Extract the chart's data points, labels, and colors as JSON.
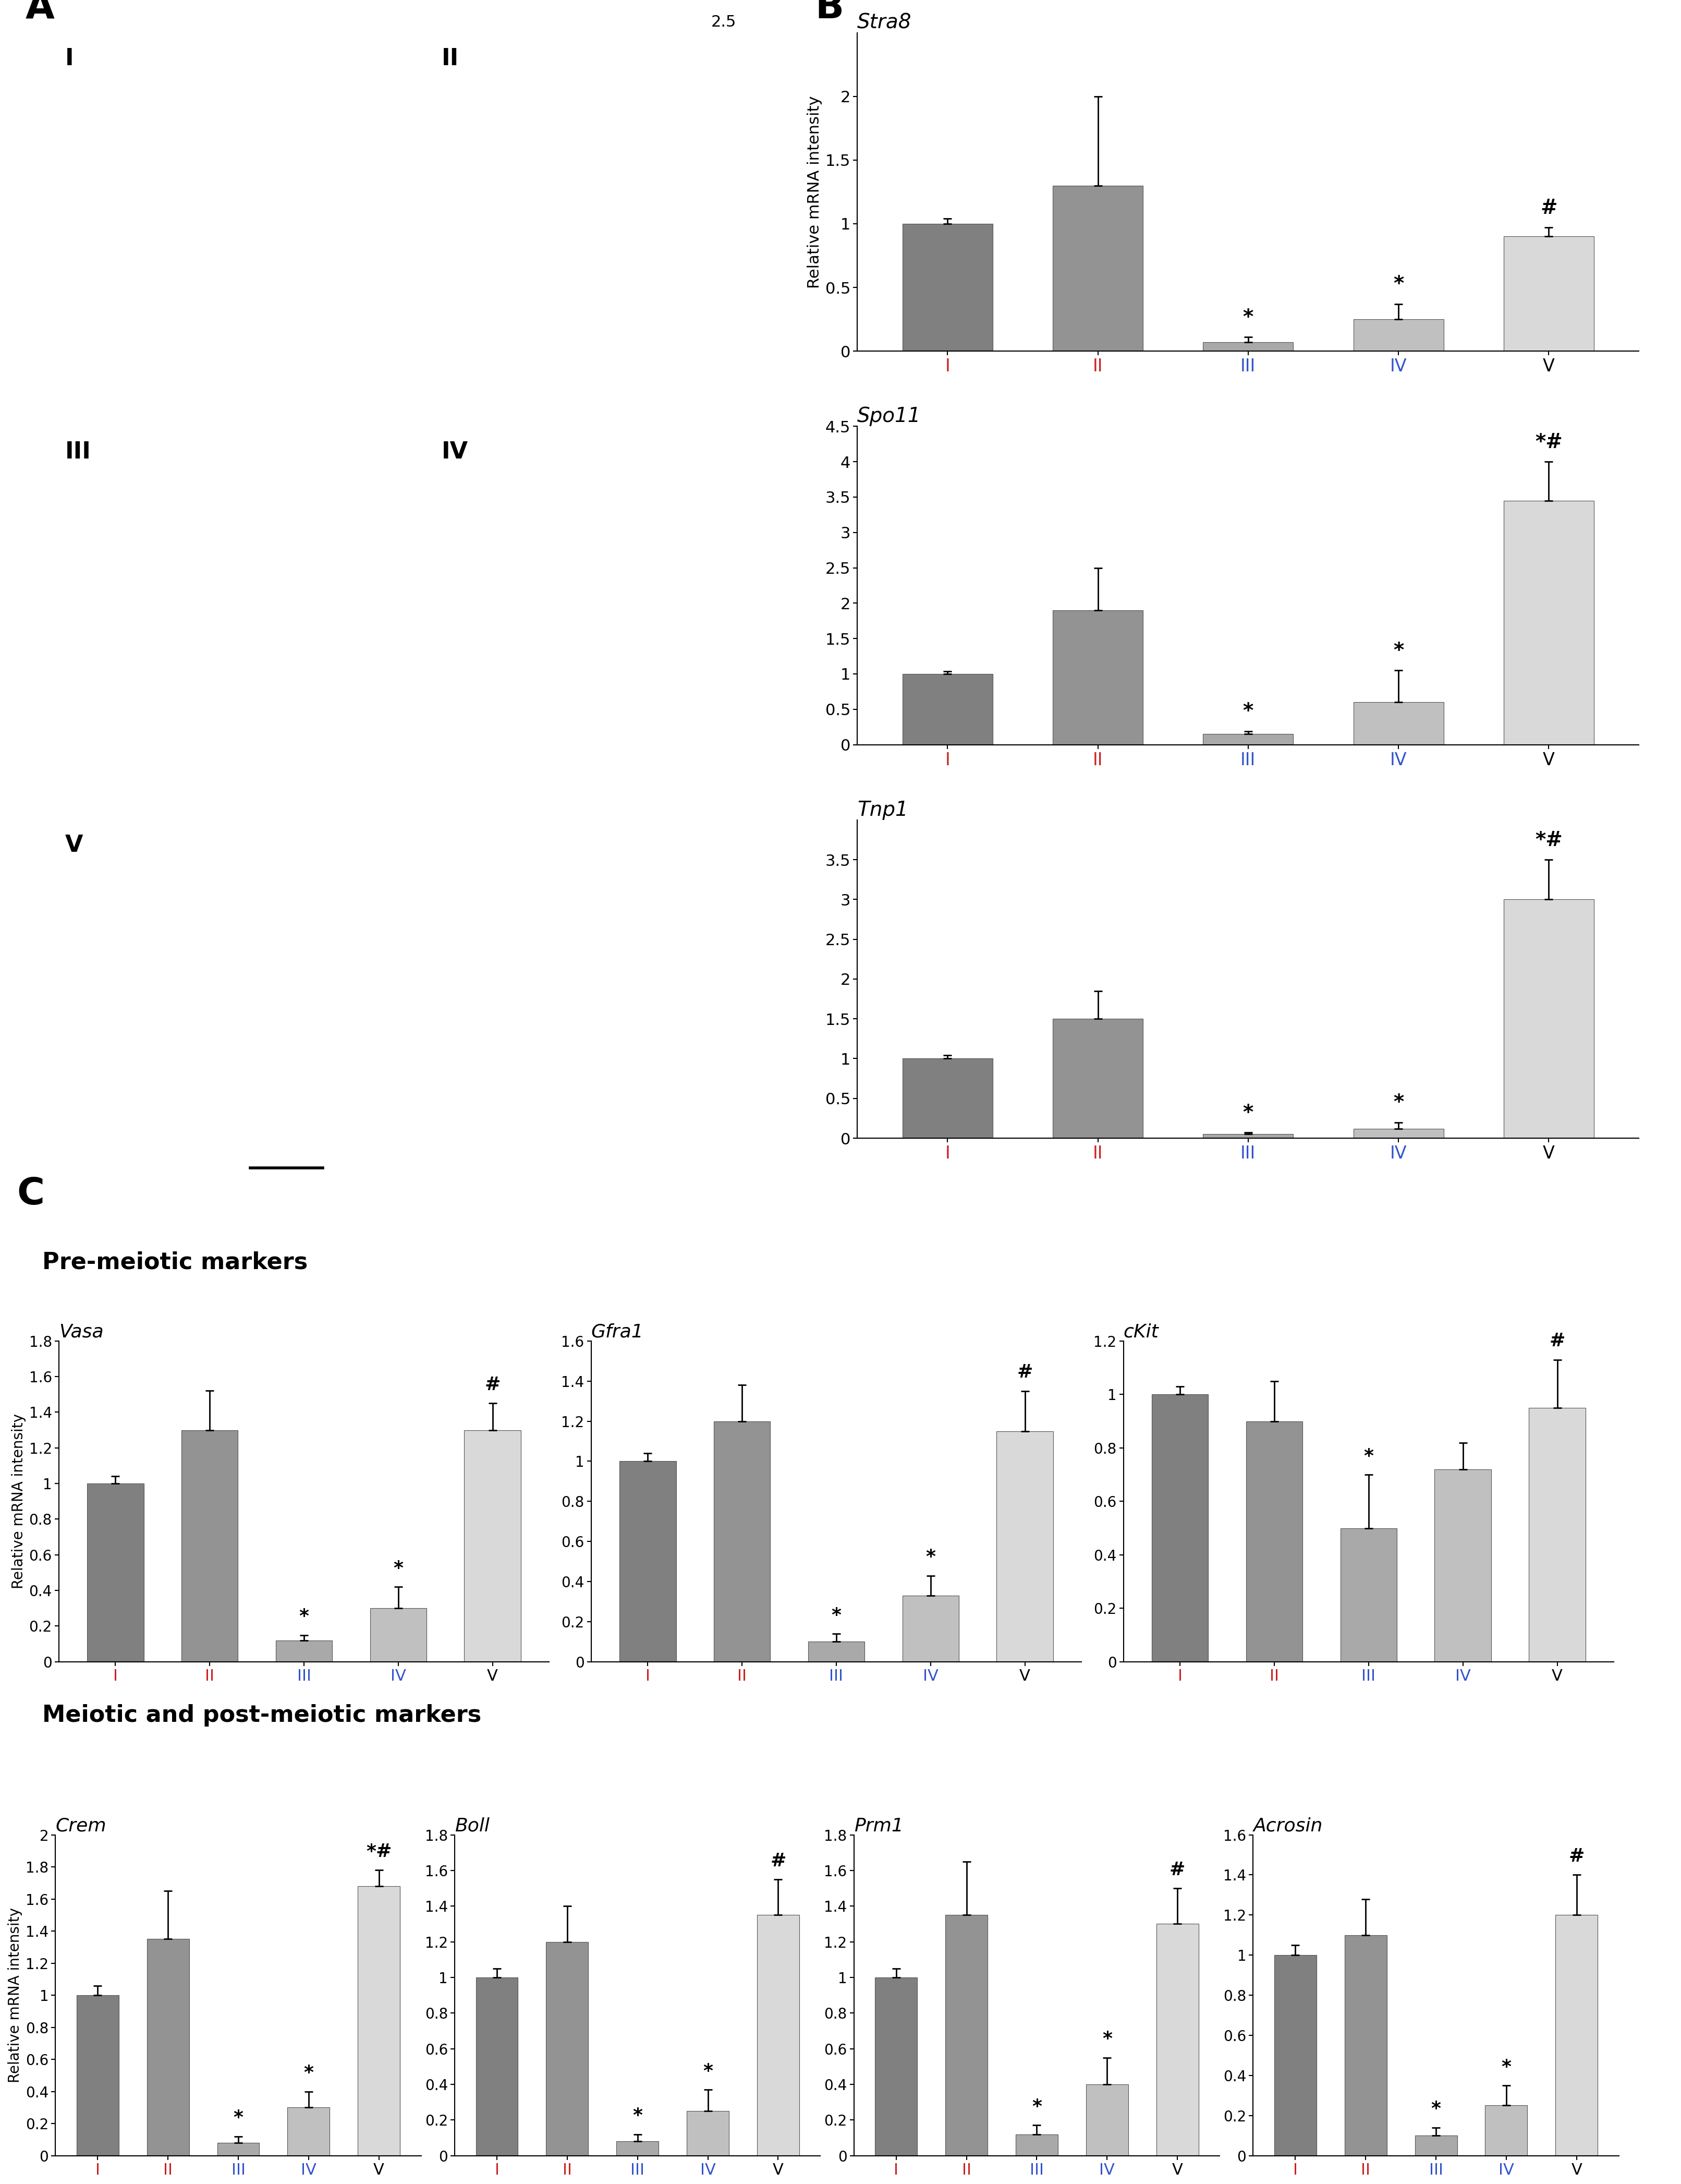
{
  "panel_B": {
    "Stra8": {
      "values": [
        1.0,
        1.3,
        0.07,
        0.25,
        0.9
      ],
      "errors": [
        0.04,
        0.7,
        0.04,
        0.12,
        0.07
      ],
      "ylim": [
        0,
        2.5
      ],
      "yticks": [
        0,
        0.5,
        1.0,
        1.5,
        2.0
      ],
      "ytick_labels": [
        "0",
        "0.5",
        "1",
        "1.5",
        "2"
      ],
      "annotations": {
        "3": "*",
        "4": "*",
        "5": "#"
      }
    },
    "Spo11": {
      "values": [
        1.0,
        1.9,
        0.15,
        0.6,
        3.45
      ],
      "errors": [
        0.04,
        0.6,
        0.04,
        0.45,
        0.55
      ],
      "ylim": [
        0,
        4.5
      ],
      "yticks": [
        0,
        0.5,
        1.0,
        1.5,
        2.0,
        2.5,
        3.0,
        3.5,
        4.0,
        4.5
      ],
      "ytick_labels": [
        "0",
        "0.5",
        "1",
        "1.5",
        "2",
        "2.5",
        "3",
        "3.5",
        "4",
        "4.5"
      ],
      "annotations": {
        "3": "*",
        "4": "*",
        "5": "*#"
      }
    },
    "Tnp1": {
      "values": [
        1.0,
        1.5,
        0.05,
        0.12,
        3.0
      ],
      "errors": [
        0.04,
        0.35,
        0.02,
        0.08,
        0.5
      ],
      "ylim": [
        0,
        4.0
      ],
      "yticks": [
        0,
        0.5,
        1.0,
        1.5,
        2.0,
        2.5,
        3.0,
        3.5
      ],
      "ytick_labels": [
        "0",
        "0.5",
        "1",
        "1.5",
        "2",
        "2.5",
        "3",
        "3.5"
      ],
      "annotations": {
        "3": "*",
        "4": "*",
        "5": "*#"
      }
    }
  },
  "panel_C_pre": {
    "Vasa": {
      "values": [
        1.0,
        1.3,
        0.12,
        0.3,
        1.3
      ],
      "errors": [
        0.04,
        0.22,
        0.03,
        0.12,
        0.15
      ],
      "ylim": [
        0,
        1.8
      ],
      "yticks": [
        0,
        0.2,
        0.4,
        0.6,
        0.8,
        1.0,
        1.2,
        1.4,
        1.6,
        1.8
      ],
      "ytick_labels": [
        "0",
        "0.2",
        "0.4",
        "0.6",
        "0.8",
        "1",
        "1.2",
        "1.4",
        "1.6",
        "1.8"
      ],
      "annotations": {
        "3": "*",
        "4": "*",
        "5": "#"
      },
      "show_ylabel": true
    },
    "Gfra1": {
      "values": [
        1.0,
        1.2,
        0.1,
        0.33,
        1.15
      ],
      "errors": [
        0.04,
        0.18,
        0.04,
        0.1,
        0.2
      ],
      "ylim": [
        0,
        1.6
      ],
      "yticks": [
        0,
        0.2,
        0.4,
        0.6,
        0.8,
        1.0,
        1.2,
        1.4,
        1.6
      ],
      "ytick_labels": [
        "0",
        "0.2",
        "0.4",
        "0.6",
        "0.8",
        "1",
        "1.2",
        "1.4",
        "1.6"
      ],
      "annotations": {
        "3": "*",
        "4": "*",
        "5": "#"
      },
      "show_ylabel": false
    },
    "cKit": {
      "values": [
        1.0,
        0.9,
        0.5,
        0.72,
        0.95
      ],
      "errors": [
        0.03,
        0.15,
        0.2,
        0.1,
        0.18
      ],
      "ylim": [
        0,
        1.2
      ],
      "yticks": [
        0,
        0.2,
        0.4,
        0.6,
        0.8,
        1.0,
        1.2
      ],
      "ytick_labels": [
        "0",
        "0.2",
        "0.4",
        "0.6",
        "0.8",
        "1",
        "1.2"
      ],
      "annotations": {
        "3": "*",
        "5": "#"
      },
      "show_ylabel": false
    }
  },
  "panel_C_post": {
    "Crem": {
      "values": [
        1.0,
        1.35,
        0.08,
        0.3,
        1.68
      ],
      "errors": [
        0.06,
        0.3,
        0.04,
        0.1,
        0.1
      ],
      "ylim": [
        0,
        2.0
      ],
      "yticks": [
        0,
        0.2,
        0.4,
        0.6,
        0.8,
        1.0,
        1.2,
        1.4,
        1.6,
        1.8,
        2.0
      ],
      "ytick_labels": [
        "0",
        "0.2",
        "0.4",
        "0.6",
        "0.8",
        "1",
        "1.2",
        "1.4",
        "1.6",
        "1.8",
        "2"
      ],
      "annotations": {
        "3": "*",
        "4": "*",
        "5": "*#"
      },
      "show_ylabel": true
    },
    "Boll": {
      "values": [
        1.0,
        1.2,
        0.08,
        0.25,
        1.35
      ],
      "errors": [
        0.05,
        0.2,
        0.04,
        0.12,
        0.2
      ],
      "ylim": [
        0,
        1.8
      ],
      "yticks": [
        0,
        0.2,
        0.4,
        0.6,
        0.8,
        1.0,
        1.2,
        1.4,
        1.6,
        1.8
      ],
      "ytick_labels": [
        "0",
        "0.2",
        "0.4",
        "0.6",
        "0.8",
        "1",
        "1.2",
        "1.4",
        "1.6",
        "1.8"
      ],
      "annotations": {
        "3": "*",
        "4": "*",
        "5": "#"
      },
      "show_ylabel": false
    },
    "Prm1": {
      "values": [
        1.0,
        1.35,
        0.12,
        0.4,
        1.3
      ],
      "errors": [
        0.05,
        0.3,
        0.05,
        0.15,
        0.2
      ],
      "ylim": [
        0,
        1.8
      ],
      "yticks": [
        0,
        0.2,
        0.4,
        0.6,
        0.8,
        1.0,
        1.2,
        1.4,
        1.6,
        1.8
      ],
      "ytick_labels": [
        "0",
        "0.2",
        "0.4",
        "0.6",
        "0.8",
        "1",
        "1.2",
        "1.4",
        "1.6",
        "1.8"
      ],
      "annotations": {
        "3": "*",
        "4": "*",
        "5": "#"
      },
      "show_ylabel": false
    },
    "Acrosin": {
      "values": [
        1.0,
        1.1,
        0.1,
        0.25,
        1.2
      ],
      "errors": [
        0.05,
        0.18,
        0.04,
        0.1,
        0.2
      ],
      "ylim": [
        0,
        1.6
      ],
      "yticks": [
        0,
        0.2,
        0.4,
        0.6,
        0.8,
        1.0,
        1.2,
        1.4,
        1.6
      ],
      "ytick_labels": [
        "0",
        "0.2",
        "0.4",
        "0.6",
        "0.8",
        "1",
        "1.2",
        "1.4",
        "1.6"
      ],
      "annotations": {
        "3": "*",
        "4": "*",
        "5": "#"
      },
      "show_ylabel": false
    }
  },
  "categories": [
    "I",
    "II",
    "III",
    "IV",
    "V"
  ],
  "bar_colors": [
    "#808080",
    "#939393",
    "#a9a9a9",
    "#c0c0c0",
    "#d9d9d9"
  ],
  "xtick_colors": [
    "#cc2222",
    "#cc2222",
    "#3355cc",
    "#3355cc",
    "#000000"
  ],
  "ylabel": "Relative mRNA intensity"
}
